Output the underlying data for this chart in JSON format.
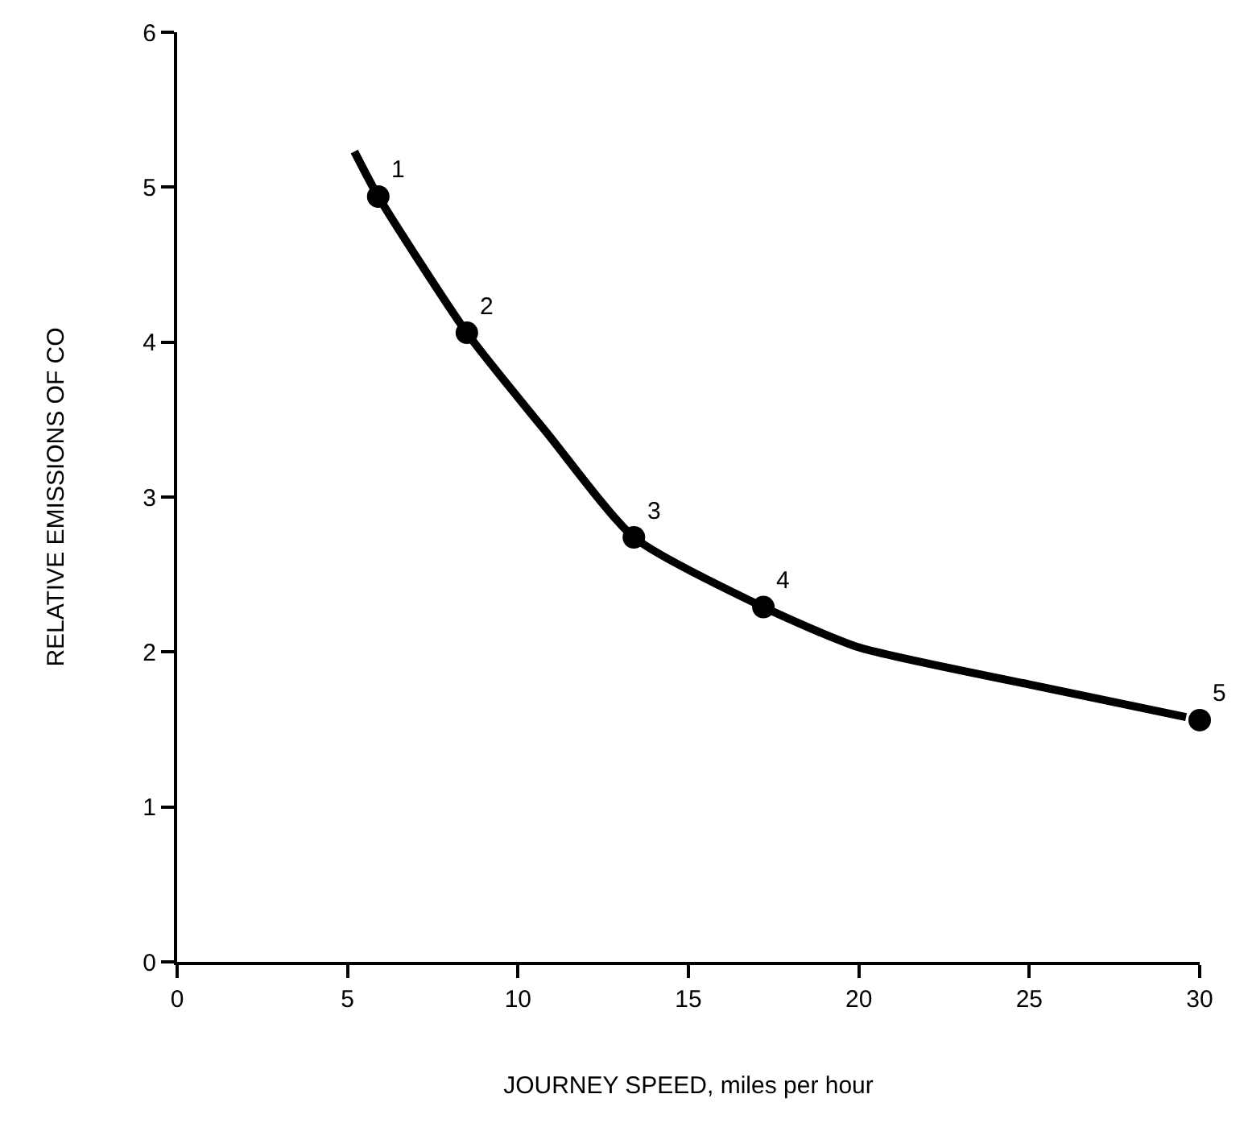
{
  "chart_data": {
    "type": "line",
    "xlabel": "JOURNEY SPEED, miles per hour",
    "ylabel": "RELATIVE EMISSIONS OF CO",
    "xlim": [
      0,
      30
    ],
    "xticks": [
      0,
      5,
      10,
      15,
      20,
      25,
      30
    ],
    "ylim": [
      0,
      6
    ],
    "yticks": [
      0,
      1,
      2,
      3,
      4,
      5,
      6
    ],
    "series": [
      {
        "type": "line",
        "color": "#000000",
        "marker": "none",
        "line_style": "solid",
        "x": [
          5.2,
          5.9,
          8.5,
          10.9,
          13.4,
          17.2,
          20,
          25,
          29.6
        ],
        "values": [
          5.23,
          4.94,
          4.06,
          3.4,
          2.74,
          2.29,
          2.03,
          1.79,
          1.58
        ]
      },
      {
        "type": "scatter",
        "color": "#000000",
        "marker": "circle",
        "x": [
          5.9,
          8.5,
          13.4,
          17.2,
          30
        ],
        "values": [
          4.94,
          4.06,
          2.74,
          2.29,
          1.56
        ]
      }
    ],
    "annotations": [
      {
        "text": "1",
        "x": 5.9,
        "y": 4.94
      },
      {
        "text": "2",
        "x": 8.5,
        "y": 4.06
      },
      {
        "text": "3",
        "x": 13.4,
        "y": 2.74
      },
      {
        "text": "4",
        "x": 17.2,
        "y": 2.29
      },
      {
        "text": "5",
        "x": 30,
        "y": 1.56
      }
    ]
  }
}
